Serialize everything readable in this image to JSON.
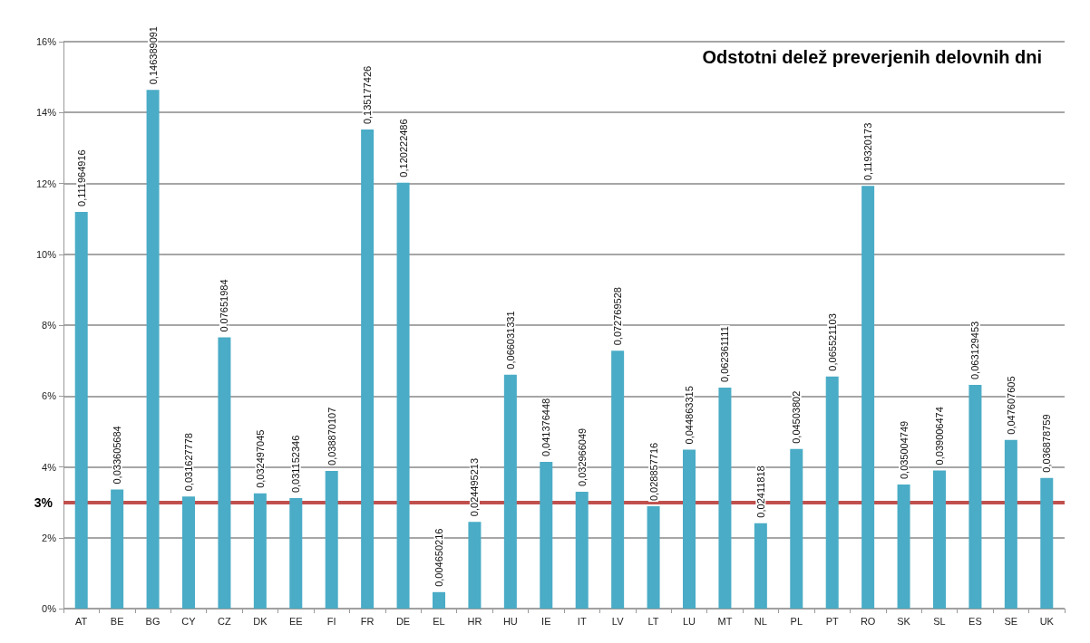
{
  "chart_data": {
    "type": "bar",
    "title": "Odstotni delež preverjenih delovnih dni",
    "categories": [
      "AT",
      "BE",
      "BG",
      "CY",
      "CZ",
      "DK",
      "EE",
      "FI",
      "FR",
      "DE",
      "EL",
      "HR",
      "HU",
      "IE",
      "IT",
      "LV",
      "LT",
      "LU",
      "MT",
      "NL",
      "PL",
      "PT",
      "RO",
      "SK",
      "SL",
      "ES",
      "SE",
      "UK"
    ],
    "values": [
      0.111964916,
      0.033605684,
      0.146389091,
      0.031627778,
      0.07651984,
      0.032497045,
      0.031152346,
      0.038870107,
      0.135177426,
      0.120222486,
      0.004650216,
      0.024495213,
      0.066031331,
      0.041376448,
      0.032966049,
      0.072769528,
      0.028857716,
      0.044863315,
      0.062361111,
      0.02411818,
      0.04503802,
      0.065521103,
      0.119320173,
      0.035004749,
      0.039006474,
      0.063129453,
      0.047607605,
      0.036878759
    ],
    "value_labels": [
      "0,111964916",
      "0,033605684",
      "0,146389091",
      "0,031627778",
      "0,07651984",
      "0,032497045",
      "0,031152346",
      "0,038870107",
      "0,135177426",
      "0,120222486",
      "0,004650216",
      "0,024495213",
      "0,066031331",
      "0,041376448",
      "0,032966049",
      "0,072769528",
      "0,028857716",
      "0,044863315",
      "0,062361111",
      "0,02411818",
      "0,04503802",
      "0,065521103",
      "0,119320173",
      "0,035004749",
      "0,039006474",
      "0,063129453",
      "0,047607605",
      "0,036878759"
    ],
    "color": "#4aacc6",
    "ylim": [
      0,
      0.16
    ],
    "yticks": [
      {
        "value": 0,
        "label": "0%"
      },
      {
        "value": 0.02,
        "label": "2%"
      },
      {
        "value": 0.04,
        "label": "4%"
      },
      {
        "value": 0.06,
        "label": "6%"
      },
      {
        "value": 0.08,
        "label": "8%"
      },
      {
        "value": 0.1,
        "label": "10%"
      },
      {
        "value": 0.12,
        "label": "12%"
      },
      {
        "value": 0.14,
        "label": "14%"
      },
      {
        "value": 0.16,
        "label": "16%"
      }
    ],
    "grid": "y",
    "ref_lines": [
      {
        "axis": "y",
        "value": 0.03,
        "label": "3%",
        "color": "#c0504d"
      }
    ]
  }
}
